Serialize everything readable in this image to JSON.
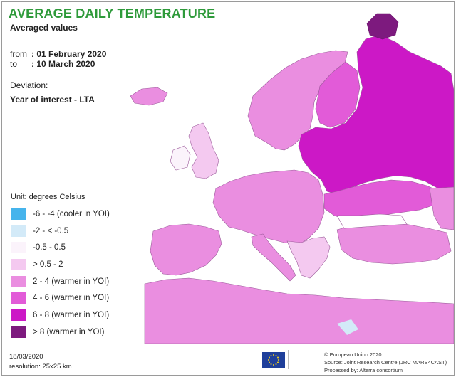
{
  "title": "AVERAGE DAILY TEMPERATURE",
  "subtitle": "Averaged values",
  "period": {
    "from_label": "from",
    "from_value": ": 01 February 2020",
    "to_label": "to",
    "to_value": ": 10 March 2020"
  },
  "deviation": {
    "label": "Deviation:",
    "value": "Year of interest - LTA"
  },
  "legend": {
    "unit": "Unit: degrees Celsius",
    "items": [
      {
        "label": "-6 - -4 (cooler in YOI)",
        "color": "#46b4ec"
      },
      {
        "label": "-2 - < -0.5",
        "color": "#d3eaf8"
      },
      {
        "label": "-0.5 - 0.5",
        "color": "#fbf3fb"
      },
      {
        "label": "> 0.5 - 2",
        "color": "#f4c9f0"
      },
      {
        "label": "2 - 4 (warmer in YOI)",
        "color": "#ea8ee0"
      },
      {
        "label": "4 - 6 (warmer in YOI)",
        "color": "#e25bd8"
      },
      {
        "label": "6 - 8 (warmer in YOI)",
        "color": "#cc18c6"
      },
      {
        "label": "> 8 (warmer in YOI)",
        "color": "#7d1a7e"
      }
    ]
  },
  "footer": {
    "date": "18/03/2020",
    "resolution": "resolution:  25x25 km",
    "copyright": "© European Union 2020",
    "source": "Source: Joint Research Centre (JRC MARS4CAST)",
    "processed": "Processed by: Alterra consortium"
  },
  "colors": {
    "sea": "#ffffff",
    "border_lines": "#7a4a7a",
    "title_green": "#2e9a3a",
    "eu_blue": "#1f3f9a",
    "eu_star": "#f6d21b"
  }
}
